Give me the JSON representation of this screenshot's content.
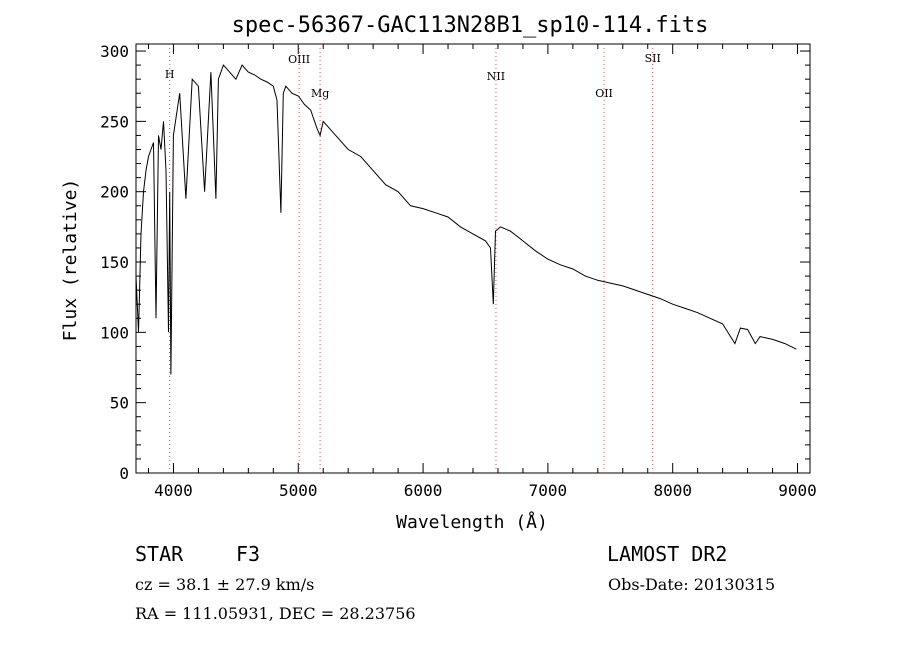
{
  "chart_data": {
    "type": "line",
    "title": "spec-56367-GAC113N28B1_sp10-114.fits",
    "xlabel": "Wavelength (Å)",
    "ylabel": "Flux (relative)",
    "xlim": [
      3700,
      9100
    ],
    "ylim": [
      0,
      305
    ],
    "xticks": [
      4000,
      5000,
      6000,
      7000,
      8000,
      9000
    ],
    "yticks": [
      0,
      50,
      100,
      150,
      200,
      250,
      300
    ],
    "grid": false,
    "lines": [
      {
        "label": "H",
        "x": 3970
      },
      {
        "label": "OIII",
        "x": 5007
      },
      {
        "label": "Mg",
        "x": 5175
      },
      {
        "label": "NII",
        "x": 6584
      },
      {
        "label": "OII",
        "x": 7450
      },
      {
        "label": "SII",
        "x": 7840
      }
    ],
    "series": [
      {
        "x": [
          3700,
          3720,
          3740,
          3760,
          3780,
          3800,
          3820,
          3840,
          3860,
          3880,
          3900,
          3920,
          3940,
          3960,
          3970,
          3980,
          4000,
          4050,
          4100,
          4150,
          4200,
          4250,
          4300,
          4340,
          4360,
          4400,
          4450,
          4500,
          4550,
          4600,
          4650,
          4700,
          4750,
          4800,
          4830,
          4861,
          4880,
          4900,
          4950,
          5000,
          5050,
          5100,
          5150,
          5175,
          5200,
          5250,
          5300,
          5400,
          5500,
          5600,
          5700,
          5800,
          5900,
          6000,
          6100,
          6200,
          6300,
          6400,
          6500,
          6540,
          6563,
          6580,
          6620,
          6700,
          6800,
          6900,
          7000,
          7100,
          7200,
          7300,
          7400,
          7500,
          7600,
          7700,
          7800,
          7900,
          8000,
          8100,
          8200,
          8300,
          8400,
          8498,
          8542,
          8600,
          8662,
          8700,
          8800,
          8900,
          8990
        ],
        "y": [
          140,
          100,
          170,
          200,
          215,
          225,
          230,
          235,
          110,
          240,
          230,
          250,
          215,
          100,
          200,
          70,
          240,
          270,
          195,
          280,
          275,
          200,
          285,
          195,
          280,
          290,
          285,
          280,
          290,
          285,
          283,
          280,
          278,
          275,
          265,
          185,
          270,
          275,
          270,
          268,
          262,
          258,
          245,
          240,
          250,
          245,
          240,
          230,
          225,
          215,
          205,
          200,
          190,
          188,
          185,
          182,
          175,
          170,
          165,
          160,
          120,
          172,
          175,
          172,
          165,
          158,
          152,
          148,
          145,
          140,
          137,
          135,
          133,
          130,
          127,
          124,
          120,
          117,
          114,
          110,
          106,
          92,
          103,
          102,
          92,
          97,
          95,
          92,
          88
        ]
      }
    ]
  },
  "footer": {
    "class_label": "STAR",
    "subclass": "F3",
    "survey": "LAMOST DR2",
    "cz": "cz = 38.1 ± 27.9 km/s",
    "obs_date": "Obs-Date: 20130315",
    "coords": "RA = 111.05931, DEC =  28.23756"
  }
}
